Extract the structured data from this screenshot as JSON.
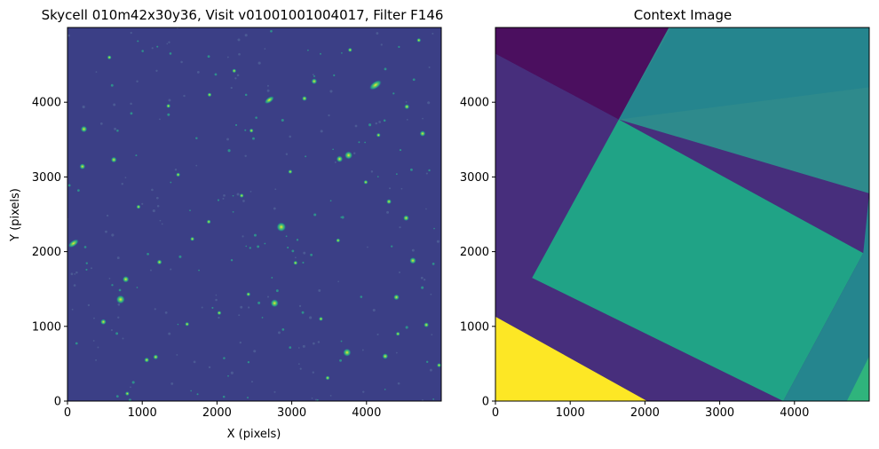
{
  "chart_data": [
    {
      "type": "heatmap",
      "title": "Skycell 010m42x30y36, Visit v01001001004017, Filter F146",
      "xlabel": "X (pixels)",
      "ylabel": "Y (pixels)",
      "xlim": [
        0,
        5000
      ],
      "ylim": [
        0,
        5000
      ],
      "xticks": [
        0,
        1000,
        2000,
        3000,
        4000
      ],
      "yticks": [
        0,
        1000,
        2000,
        3000,
        4000
      ],
      "colormap": "viridis",
      "background_color": "#3b3f86",
      "sources": [
        {
          "x": 4120,
          "y": 4230,
          "r": 70,
          "kind": "galaxy"
        },
        {
          "x": 2700,
          "y": 4030,
          "r": 55,
          "kind": "galaxy"
        },
        {
          "x": 3300,
          "y": 4280,
          "r": 40
        },
        {
          "x": 3780,
          "y": 4700,
          "r": 30
        },
        {
          "x": 4700,
          "y": 4830,
          "r": 25
        },
        {
          "x": 3170,
          "y": 4050,
          "r": 35
        },
        {
          "x": 1350,
          "y": 3950,
          "r": 30
        },
        {
          "x": 2230,
          "y": 4420,
          "r": 25
        },
        {
          "x": 4540,
          "y": 3940,
          "r": 35
        },
        {
          "x": 220,
          "y": 3640,
          "r": 45
        },
        {
          "x": 4750,
          "y": 3580,
          "r": 40
        },
        {
          "x": 3760,
          "y": 3290,
          "r": 55
        },
        {
          "x": 3640,
          "y": 3240,
          "r": 45
        },
        {
          "x": 3990,
          "y": 2930,
          "r": 30
        },
        {
          "x": 620,
          "y": 3230,
          "r": 40
        },
        {
          "x": 200,
          "y": 3140,
          "r": 40
        },
        {
          "x": 1480,
          "y": 3030,
          "r": 25
        },
        {
          "x": 2980,
          "y": 3070,
          "r": 30
        },
        {
          "x": 2330,
          "y": 2750,
          "r": 30
        },
        {
          "x": 4300,
          "y": 2670,
          "r": 35
        },
        {
          "x": 4530,
          "y": 2450,
          "r": 40
        },
        {
          "x": 2860,
          "y": 2330,
          "r": 65
        },
        {
          "x": 80,
          "y": 2110,
          "r": 60,
          "kind": "galaxy"
        },
        {
          "x": 4620,
          "y": 1880,
          "r": 45
        },
        {
          "x": 1230,
          "y": 1860,
          "r": 35
        },
        {
          "x": 780,
          "y": 1630,
          "r": 45
        },
        {
          "x": 710,
          "y": 1360,
          "r": 60
        },
        {
          "x": 2770,
          "y": 1310,
          "r": 55
        },
        {
          "x": 4400,
          "y": 1390,
          "r": 40
        },
        {
          "x": 480,
          "y": 1060,
          "r": 40
        },
        {
          "x": 4800,
          "y": 1020,
          "r": 35
        },
        {
          "x": 1060,
          "y": 550,
          "r": 35
        },
        {
          "x": 1180,
          "y": 590,
          "r": 35
        },
        {
          "x": 3740,
          "y": 650,
          "r": 55
        },
        {
          "x": 4250,
          "y": 600,
          "r": 40
        },
        {
          "x": 3480,
          "y": 310,
          "r": 30
        },
        {
          "x": 800,
          "y": 100,
          "r": 30
        },
        {
          "x": 4970,
          "y": 480,
          "r": 30
        },
        {
          "x": 1600,
          "y": 1030,
          "r": 25
        },
        {
          "x": 2030,
          "y": 1180,
          "r": 25
        },
        {
          "x": 2420,
          "y": 1430,
          "r": 25
        },
        {
          "x": 3390,
          "y": 1100,
          "r": 25
        },
        {
          "x": 4420,
          "y": 900,
          "r": 25
        },
        {
          "x": 1890,
          "y": 2400,
          "r": 25
        },
        {
          "x": 3050,
          "y": 1850,
          "r": 25
        },
        {
          "x": 3620,
          "y": 2150,
          "r": 25
        },
        {
          "x": 950,
          "y": 2600,
          "r": 25
        },
        {
          "x": 1670,
          "y": 2170,
          "r": 25
        },
        {
          "x": 2460,
          "y": 3620,
          "r": 25
        },
        {
          "x": 1900,
          "y": 4100,
          "r": 25
        },
        {
          "x": 560,
          "y": 4600,
          "r": 25
        },
        {
          "x": 4160,
          "y": 3560,
          "r": 25
        }
      ]
    },
    {
      "type": "heatmap",
      "title": "Context Image",
      "xlim": [
        0,
        5000
      ],
      "ylim": [
        0,
        5000
      ],
      "xticks": [
        0,
        1000,
        2000,
        3000,
        4000
      ],
      "yticks": [
        0,
        1000,
        2000,
        3000,
        4000
      ],
      "colormap": "viridis",
      "regions": [
        {
          "name": "base",
          "color": "#472e7c"
        },
        {
          "name": "upper-left-dark",
          "color": "#4b0f5f",
          "polygon": [
            [
              0,
              5000
            ],
            [
              2320,
              5000
            ],
            [
              1650,
              3770
            ],
            [
              0,
              4650
            ]
          ]
        },
        {
          "name": "upper-band",
          "color": "#2e8a8c",
          "polygon": [
            [
              2320,
              5000
            ],
            [
              2350,
              5000
            ],
            [
              4900,
              5000
            ],
            [
              5000,
              4200
            ],
            [
              5000,
              2780
            ],
            [
              1650,
              3770
            ]
          ]
        },
        {
          "name": "upper-band-inner",
          "color": "#25858e",
          "polygon": [
            [
              2350,
              5000
            ],
            [
              5000,
              5000
            ],
            [
              5000,
              4200
            ],
            [
              1650,
              3770
            ]
          ]
        },
        {
          "name": "center-tile",
          "color": "#20a386",
          "polygon": [
            [
              1650,
              3770
            ],
            [
              4920,
              1980
            ],
            [
              3850,
              0
            ],
            [
              490,
              1650
            ]
          ]
        },
        {
          "name": "lower-right-band",
          "color": "#25858e",
          "polygon": [
            [
              3850,
              0
            ],
            [
              5000,
              0
            ],
            [
              5000,
              2780
            ],
            [
              4920,
              1980
            ]
          ]
        },
        {
          "name": "lower-right-corner",
          "color": "#2fb47c",
          "polygon": [
            [
              4700,
              0
            ],
            [
              5000,
              0
            ],
            [
              5000,
              600
            ]
          ]
        },
        {
          "name": "lower-left-yellow",
          "color": "#fde725",
          "polygon": [
            [
              0,
              0
            ],
            [
              2030,
              0
            ],
            [
              0,
              1130
            ]
          ]
        }
      ]
    }
  ]
}
